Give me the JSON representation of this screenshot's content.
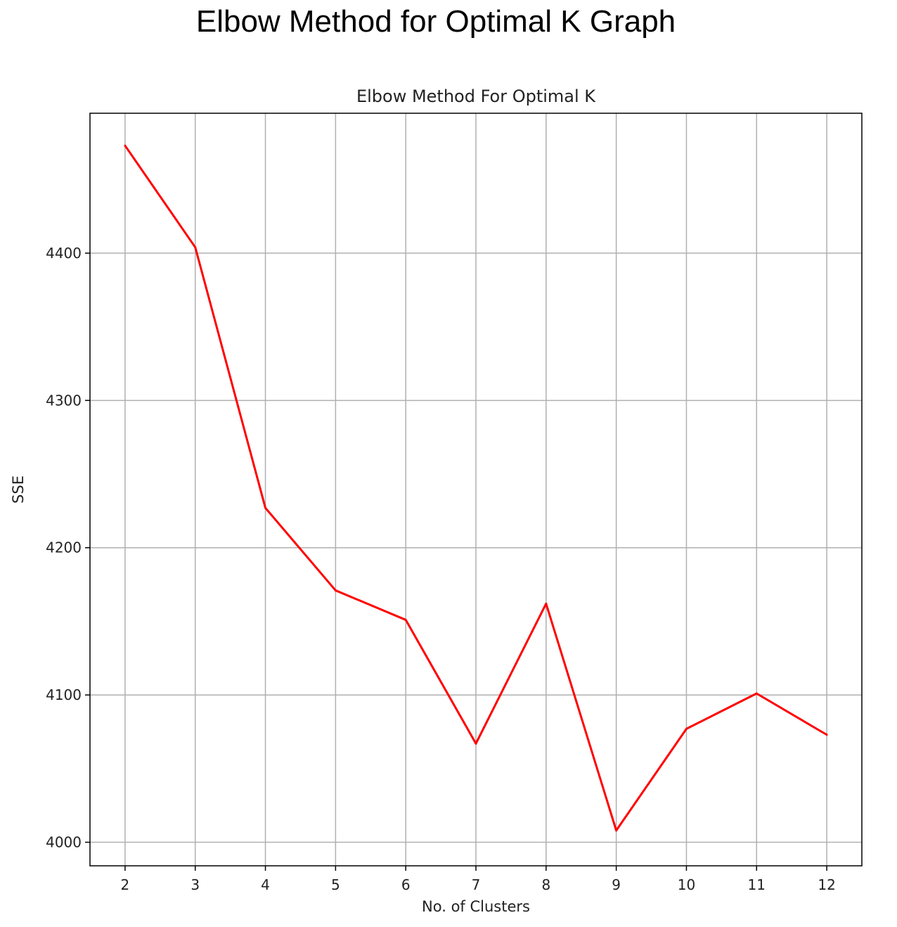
{
  "page": {
    "heading": "Elbow Method for Optimal K Graph"
  },
  "chart_data": {
    "type": "line",
    "title": "Elbow Method For Optimal K",
    "xlabel": "No. of Clusters",
    "ylabel": "SSE",
    "x": [
      2,
      3,
      4,
      5,
      6,
      7,
      8,
      9,
      10,
      11,
      12
    ],
    "series": [
      {
        "values": [
          4473,
          4404,
          4227,
          4171,
          4151,
          4067,
          4162,
          4008,
          4077,
          4101,
          4073
        ]
      }
    ],
    "xticks": [
      "2",
      "3",
      "4",
      "5",
      "6",
      "7",
      "8",
      "9",
      "10",
      "11",
      "12"
    ],
    "yticks": [
      4000,
      4100,
      4200,
      4300,
      4400
    ],
    "xlim": [
      1.5,
      12.5
    ],
    "ylim": [
      3984,
      4495
    ],
    "grid": true,
    "line_color": "#ff0000",
    "grid_color": "#b0b0b0"
  }
}
